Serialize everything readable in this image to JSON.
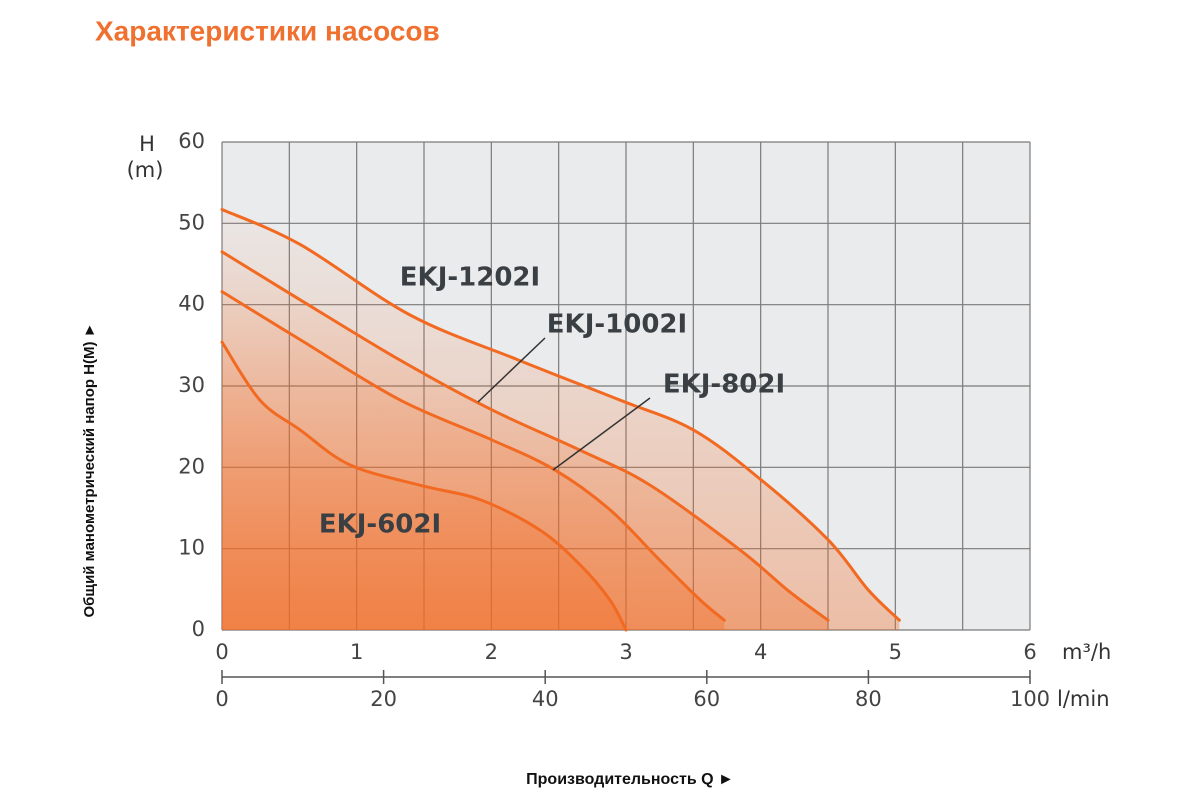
{
  "chart_data": {
    "type": "line",
    "title": "Характеристики насосов",
    "y_label": "H",
    "y_unit": "(m)",
    "x_unit": "m³/h",
    "x2_unit": "l/min",
    "y_axis_title": "Общий манометрический напор H(M) ►",
    "x_axis_title": "Производительность Q ►",
    "xlim": [
      0,
      6
    ],
    "xticks": [
      0,
      1,
      2,
      3,
      4,
      5,
      6
    ],
    "x_minor_grid": [
      0.5,
      1.5,
      2.5,
      3.5,
      4.5,
      5.5
    ],
    "x2lim": [
      0,
      100
    ],
    "x2ticks": [
      0,
      20,
      40,
      60,
      80,
      100
    ],
    "ylim": [
      0,
      60
    ],
    "yticks": [
      0,
      10,
      20,
      30,
      40,
      50,
      60
    ],
    "grid": true,
    "color": "#f26a22",
    "series": [
      {
        "name": "EKJ-1202I",
        "color": "#f26a22",
        "x": [
          0,
          0.58,
          1.4,
          2.2,
          2.95,
          3.5,
          4.0,
          4.5,
          4.8,
          5.03
        ],
        "values": [
          51.7,
          47.4,
          38.7,
          33.2,
          28.3,
          24.6,
          18.5,
          11.1,
          4.9,
          1.2
        ]
      },
      {
        "name": "EKJ-1002I",
        "color": "#f26a22",
        "x": [
          0,
          0.58,
          1.32,
          2.0,
          2.66,
          3.18,
          3.85,
          4.2,
          4.5
        ],
        "values": [
          46.5,
          40.6,
          33.2,
          27.1,
          22.1,
          17.8,
          9.8,
          4.9,
          1.2
        ]
      },
      {
        "name": "EKJ-802I",
        "color": "#f26a22",
        "x": [
          0,
          0.58,
          1.32,
          2.0,
          2.47,
          2.88,
          3.25,
          3.55,
          3.73
        ],
        "values": [
          41.6,
          35.7,
          28.3,
          23.4,
          19.7,
          14.8,
          8.6,
          3.7,
          1.2
        ]
      },
      {
        "name": "EKJ-602I",
        "color": "#f26a22",
        "x": [
          0,
          0.28,
          0.58,
          0.95,
          1.47,
          1.92,
          2.36,
          2.66,
          2.88,
          3.0
        ],
        "values": [
          35.4,
          28.3,
          24.6,
          20.3,
          17.8,
          16.0,
          12.3,
          8.0,
          3.7,
          0
        ]
      }
    ]
  }
}
